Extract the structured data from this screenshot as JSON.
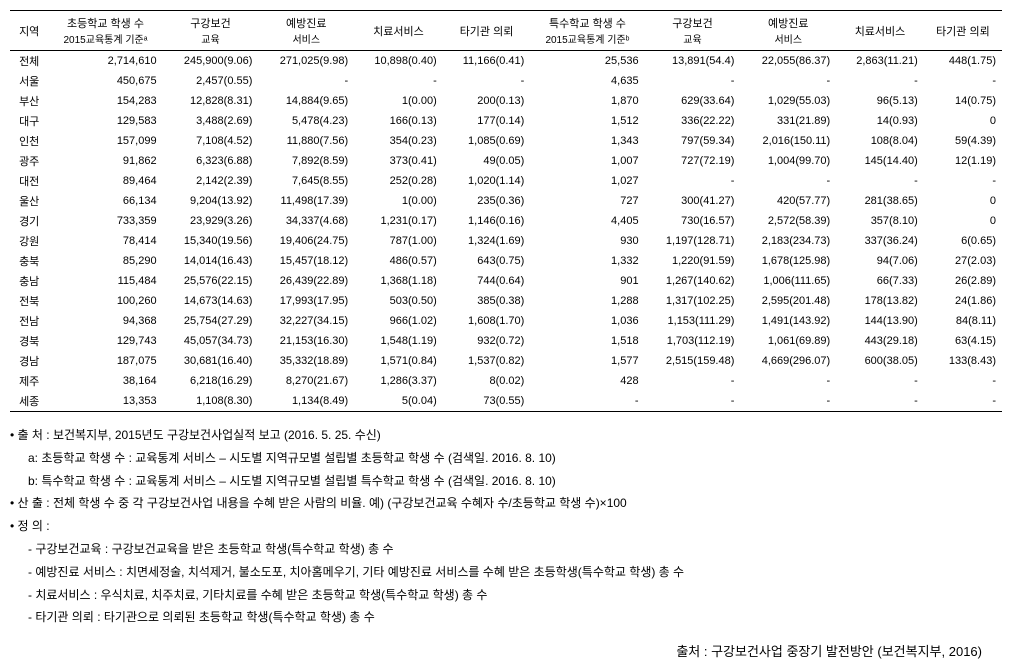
{
  "table": {
    "headers": [
      {
        "l1": "지역",
        "l2": ""
      },
      {
        "l1": "초등학교 학생 수",
        "l2": "2015교육통계 기준ᵃ"
      },
      {
        "l1": "구강보건",
        "l2": "교육"
      },
      {
        "l1": "예방진료",
        "l2": "서비스"
      },
      {
        "l1": "치료서비스",
        "l2": ""
      },
      {
        "l1": "타기관 의뢰",
        "l2": ""
      },
      {
        "l1": "특수학교 학생 수",
        "l2": "2015교육통계 기준ᵇ"
      },
      {
        "l1": "구강보건",
        "l2": "교육"
      },
      {
        "l1": "예방진료",
        "l2": "서비스"
      },
      {
        "l1": "치료서비스",
        "l2": ""
      },
      {
        "l1": "타기관 의뢰",
        "l2": ""
      }
    ],
    "rows": [
      [
        "전체",
        "2,714,610",
        "245,900(9.06)",
        "271,025(9.98)",
        "10,898(0.40)",
        "11,166(0.41)",
        "25,536",
        "13,891(54.4)",
        "22,055(86.37)",
        "2,863(11.21)",
        "448(1.75)"
      ],
      [
        "서울",
        "450,675",
        "2,457(0.55)",
        "-",
        "-",
        "-",
        "4,635",
        "-",
        "-",
        "-",
        "-"
      ],
      [
        "부산",
        "154,283",
        "12,828(8.31)",
        "14,884(9.65)",
        "1(0.00)",
        "200(0.13)",
        "1,870",
        "629(33.64)",
        "1,029(55.03)",
        "96(5.13)",
        "14(0.75)"
      ],
      [
        "대구",
        "129,583",
        "3,488(2.69)",
        "5,478(4.23)",
        "166(0.13)",
        "177(0.14)",
        "1,512",
        "336(22.22)",
        "331(21.89)",
        "14(0.93)",
        "0"
      ],
      [
        "인천",
        "157,099",
        "7,108(4.52)",
        "11,880(7.56)",
        "354(0.23)",
        "1,085(0.69)",
        "1,343",
        "797(59.34)",
        "2,016(150.11)",
        "108(8.04)",
        "59(4.39)"
      ],
      [
        "광주",
        "91,862",
        "6,323(6.88)",
        "7,892(8.59)",
        "373(0.41)",
        "49(0.05)",
        "1,007",
        "727(72.19)",
        "1,004(99.70)",
        "145(14.40)",
        "12(1.19)"
      ],
      [
        "대전",
        "89,464",
        "2,142(2.39)",
        "7,645(8.55)",
        "252(0.28)",
        "1,020(1.14)",
        "1,027",
        "-",
        "-",
        "-",
        "-"
      ],
      [
        "울산",
        "66,134",
        "9,204(13.92)",
        "11,498(17.39)",
        "1(0.00)",
        "235(0.36)",
        "727",
        "300(41.27)",
        "420(57.77)",
        "281(38.65)",
        "0"
      ],
      [
        "경기",
        "733,359",
        "23,929(3.26)",
        "34,337(4.68)",
        "1,231(0.17)",
        "1,146(0.16)",
        "4,405",
        "730(16.57)",
        "2,572(58.39)",
        "357(8.10)",
        "0"
      ],
      [
        "강원",
        "78,414",
        "15,340(19.56)",
        "19,406(24.75)",
        "787(1.00)",
        "1,324(1.69)",
        "930",
        "1,197(128.71)",
        "2,183(234.73)",
        "337(36.24)",
        "6(0.65)"
      ],
      [
        "충북",
        "85,290",
        "14,014(16.43)",
        "15,457(18.12)",
        "486(0.57)",
        "643(0.75)",
        "1,332",
        "1,220(91.59)",
        "1,678(125.98)",
        "94(7.06)",
        "27(2.03)"
      ],
      [
        "충남",
        "115,484",
        "25,576(22.15)",
        "26,439(22.89)",
        "1,368(1.18)",
        "744(0.64)",
        "901",
        "1,267(140.62)",
        "1,006(111.65)",
        "66(7.33)",
        "26(2.89)"
      ],
      [
        "전북",
        "100,260",
        "14,673(14.63)",
        "17,993(17.95)",
        "503(0.50)",
        "385(0.38)",
        "1,288",
        "1,317(102.25)",
        "2,595(201.48)",
        "178(13.82)",
        "24(1.86)"
      ],
      [
        "전남",
        "94,368",
        "25,754(27.29)",
        "32,227(34.15)",
        "966(1.02)",
        "1,608(1.70)",
        "1,036",
        "1,153(111.29)",
        "1,491(143.92)",
        "144(13.90)",
        "84(8.11)"
      ],
      [
        "경북",
        "129,743",
        "45,057(34.73)",
        "21,153(16.30)",
        "1,548(1.19)",
        "932(0.72)",
        "1,518",
        "1,703(112.19)",
        "1,061(69.89)",
        "443(29.18)",
        "63(4.15)"
      ],
      [
        "경남",
        "187,075",
        "30,681(16.40)",
        "35,332(18.89)",
        "1,571(0.84)",
        "1,537(0.82)",
        "1,577",
        "2,515(159.48)",
        "4,669(296.07)",
        "600(38.05)",
        "133(8.43)"
      ],
      [
        "제주",
        "38,164",
        "6,218(16.29)",
        "8,270(21.67)",
        "1,286(3.37)",
        "8(0.02)",
        "428",
        "-",
        "-",
        "-",
        "-"
      ],
      [
        "세종",
        "13,353",
        "1,108(8.30)",
        "1,134(8.49)",
        "5(0.04)",
        "73(0.55)",
        "-",
        "-",
        "-",
        "-",
        "-"
      ]
    ]
  },
  "notes": [
    {
      "type": "bullet",
      "text": "출   처 : 보건복지부, 2015년도 구강보건사업실적 보고 (2016. 5. 25. 수신)"
    },
    {
      "type": "indent",
      "text": "a: 초등학교 학생 수 : 교육통계 서비스 – 시도별 지역규모별 설립별 초등학교 학생 수 (검색일. 2016. 8. 10)"
    },
    {
      "type": "indent",
      "text": "b: 특수학교 학생 수 : 교육통계 서비스 – 시도별 지역규모별 설립별 특수학교 학생 수 (검색일. 2016. 8. 10)"
    },
    {
      "type": "bullet",
      "text": "산   출 : 전체 학생 수 중 각 구강보건사업 내용을 수혜 받은 사람의 비율. 예) (구강보건교육 수혜자 수/초등학교 학생 수)×100"
    },
    {
      "type": "bullet",
      "text": "정   의 :"
    },
    {
      "type": "dash-indent",
      "text": "구강보건교육 : 구강보건교육을 받은 초등학교 학생(특수학교 학생) 총 수"
    },
    {
      "type": "dash-indent",
      "text": "예방진료 서비스 : 치면세정술, 치석제거, 불소도포, 치아홈메우기, 기타 예방진료 서비스를 수혜 받은 초등학생(특수학교 학생) 총 수"
    },
    {
      "type": "dash-indent",
      "text": "치료서비스 : 우식치료, 치주치료, 기타치료를 수혜 받은 초등학교 학생(특수학교 학생) 총 수"
    },
    {
      "type": "dash-indent",
      "text": "타기관 의뢰 : 타기관으로 의뢰된 초등학교 학생(특수학교 학생) 총 수"
    }
  ],
  "sourceBottom": "출처 : 구강보건사업 중장기 발전방안 (보건복지부, 2016)"
}
